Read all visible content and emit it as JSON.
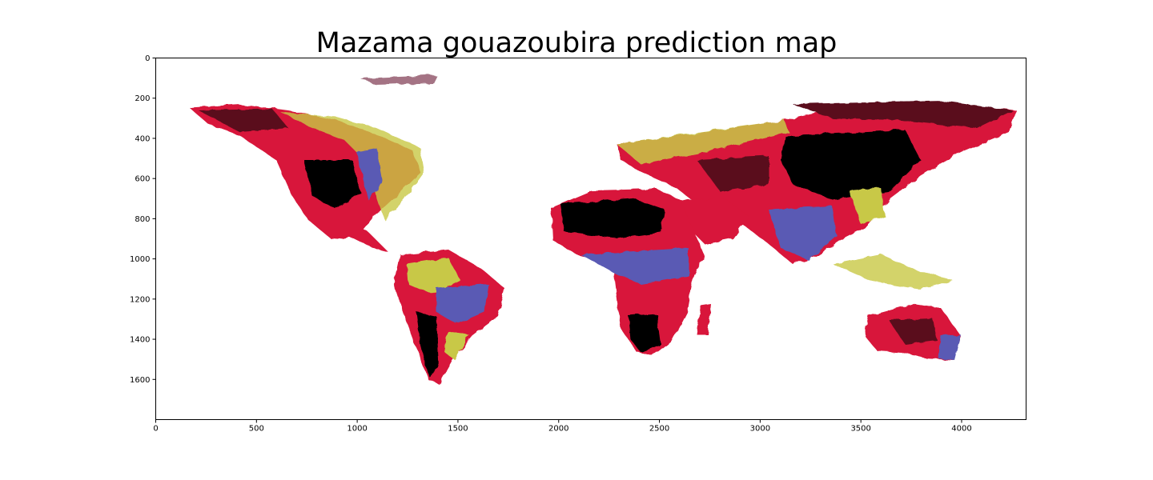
{
  "title": "Mazama gouazoubira prediction map",
  "x_axis": {
    "range": [
      0,
      4320
    ],
    "ticks": [
      0,
      500,
      1000,
      1500,
      2000,
      2500,
      3000,
      3500,
      4000
    ]
  },
  "y_axis": {
    "range": [
      0,
      1800
    ],
    "inverted": true,
    "ticks": [
      0,
      200,
      400,
      600,
      800,
      1000,
      1200,
      1400,
      1600
    ]
  },
  "colormap": [
    "#000000",
    "#5a0a1e",
    "#d8143a",
    "#5a5ab4",
    "#8c8cc8",
    "#c8c846",
    "#e6e6a0",
    "#ffffff"
  ],
  "colors": {
    "background": "#ffffff",
    "frame": "#000000"
  }
}
